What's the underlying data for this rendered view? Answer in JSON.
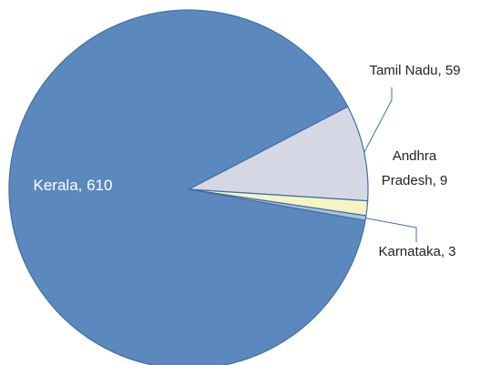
{
  "chart_data": {
    "type": "pie",
    "categories": [
      "Kerala",
      "Tamil Nadu",
      "Andhra Pradesh",
      "Karnataka"
    ],
    "values": [
      610,
      59,
      9,
      3
    ],
    "value_labels": [
      "Kerala, 610",
      "Tamil Nadu, 59",
      "Andhra Pradesh, 9",
      "Karnataka, 3"
    ],
    "colors": [
      "#5b89bd",
      "#d6d7e4",
      "#f7f4c4",
      "#a9c1dd"
    ]
  }
}
